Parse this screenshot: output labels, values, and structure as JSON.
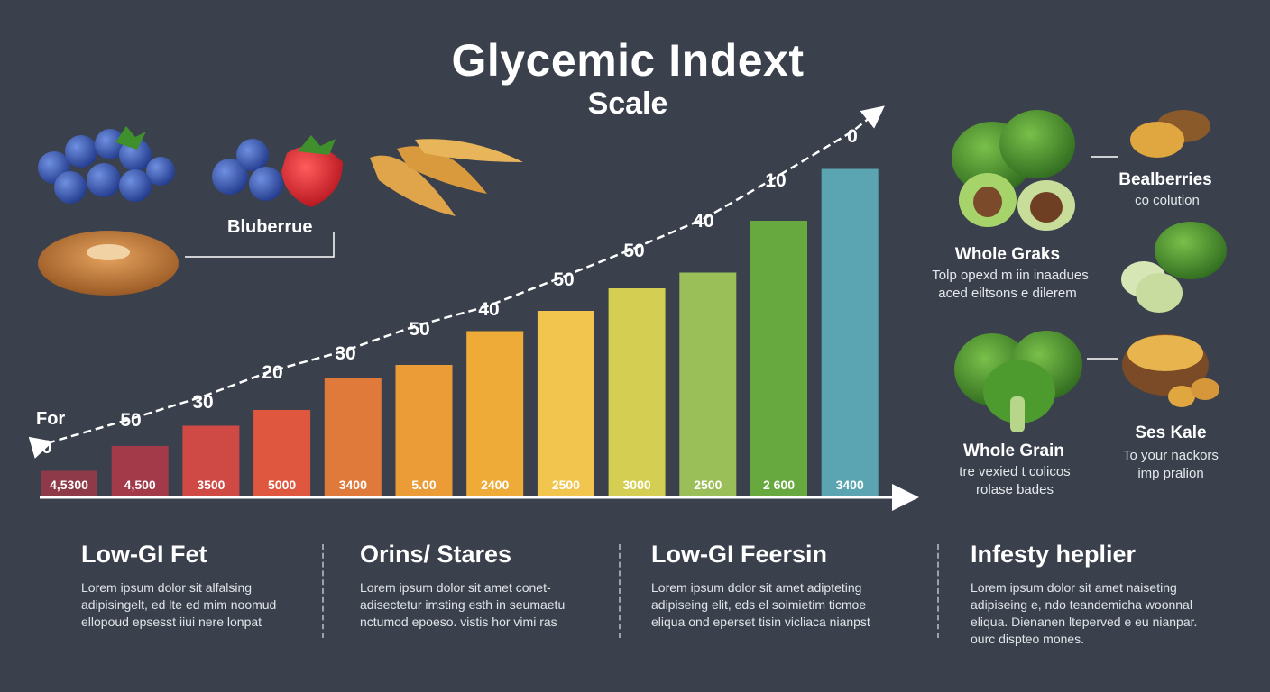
{
  "title": "Glycemic Indext",
  "subtitle": "Scale",
  "chart_data": {
    "type": "bar",
    "categories": [
      "4,5300",
      "4,500",
      "3500",
      "5000",
      "3400",
      "5.00",
      "2400",
      "2500",
      "3000",
      "2500",
      "2 600",
      "3400"
    ],
    "values": [
      1.1,
      2.2,
      3.1,
      3.8,
      5.2,
      5.8,
      7.3,
      8.2,
      9.2,
      9.9,
      12.2,
      14.5
    ],
    "colors": [
      "#8e3a48",
      "#a33a4a",
      "#cf4a45",
      "#e0573f",
      "#e07a3a",
      "#eb9c37",
      "#efab38",
      "#f2c54e",
      "#d4cf52",
      "#9bbf58",
      "#67a93e",
      "#5aa5b1"
    ],
    "ylim": [
      0,
      16
    ],
    "trend_labels": [
      "0",
      "50",
      "30",
      "20",
      "30",
      "50",
      "40",
      "50",
      "50",
      "40",
      "10",
      "0"
    ],
    "trend_start_label": "For",
    "grid": false
  },
  "foods_left": {
    "label": "Bluberrue"
  },
  "foods_right": [
    {
      "name": "Bealberries",
      "desc": [
        "co colution"
      ]
    },
    {
      "name": "Whole Graks",
      "desc": [
        "Tolp opexd m iin inaadues",
        "aced eiltsons e dilerem"
      ]
    },
    {
      "name": "Whole Grain",
      "desc": [
        "tre vexied t colicos",
        "rolase bades"
      ]
    },
    {
      "name": "Ses Kale",
      "desc": [
        "To your nackors",
        "imp pralion"
      ]
    }
  ],
  "columns": [
    {
      "title": "Low-GI Fet",
      "text": [
        "Lorem ipsum dolor sit alfalsing",
        "adipisingelt, ed lte ed mim noomud",
        "ellopoud epsesst iiui nere lonpat"
      ]
    },
    {
      "title": "Orins/ Stares",
      "text": [
        "Lorem ipsum dolor sit amet conet-",
        "adisectetur imsting esth in seumaetu",
        "nctumod epoeso. vistis hor vimi ras"
      ]
    },
    {
      "title": "Low-GI Feersin",
      "text": [
        "Lorem ipsum dolor sit amet adipteting",
        "adipiseing elit, eds el soimietim ticmoe",
        "eliqua ond eperset tisin vicliaca nianpst"
      ]
    },
    {
      "title": "Infesty heplier",
      "text": [
        "Lorem ipsum dolor sit amet naiseting",
        "adipiseing e, ndo teandemicha woonnal",
        "eliqua. Dienanen lteperved e eu nianpar.",
        "ourc dispteo mones."
      ]
    }
  ]
}
